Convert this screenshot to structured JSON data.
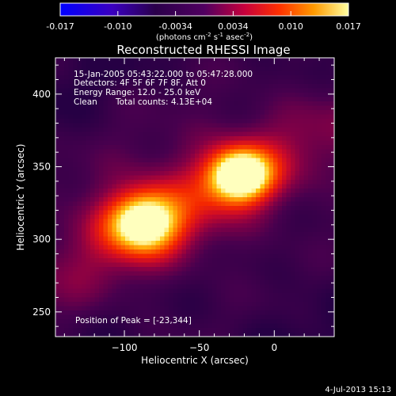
{
  "colorbar": {
    "ticks": [
      "-0.017",
      "-0.010",
      "-0.0034",
      "0.0034",
      "0.010",
      "0.017"
    ],
    "units_main": "(photons cm",
    "units_exp1": "-2",
    "units_mid": " s",
    "units_exp2": "-1",
    "units_tail": " asec",
    "units_exp3": "-2",
    "units_close": ")"
  },
  "chart_data": {
    "type": "heatmap",
    "title": "Reconstructed RHESSI Image",
    "xlabel": "Heliocentric X (arcsec)",
    "ylabel": "Heliocentric Y (arcsec)",
    "xlim": [
      -146,
      40
    ],
    "ylim": [
      233,
      425
    ],
    "xticks": [
      -100,
      -50,
      0
    ],
    "yticks": [
      250,
      300,
      350,
      400
    ],
    "xtick_labels": [
      "−100",
      "−50",
      "0"
    ],
    "ytick_labels": [
      "250",
      "300",
      "350",
      "400"
    ],
    "sources": [
      {
        "x": -88,
        "y": 312,
        "peak": 0.9,
        "sx": 17,
        "sy": 15
      },
      {
        "x": -23,
        "y": 344,
        "peak": 1.0,
        "sx": 15,
        "sy": 13
      }
    ],
    "annotations": {
      "line1": "15-Jan-2005 05:43:22.000 to 05:47:28.000",
      "line2": "Detectors: 4F 5F 6F 7F 8F, Att 0",
      "line3": "Energy Range: 12.0 - 25.0 keV",
      "line4_method": "Clean",
      "line4_counts": "Total counts: 4.13E+04",
      "peak": "Position of Peak = [-23,344]"
    }
  },
  "footer": {
    "date": "4-Jul-2013 15:13"
  }
}
